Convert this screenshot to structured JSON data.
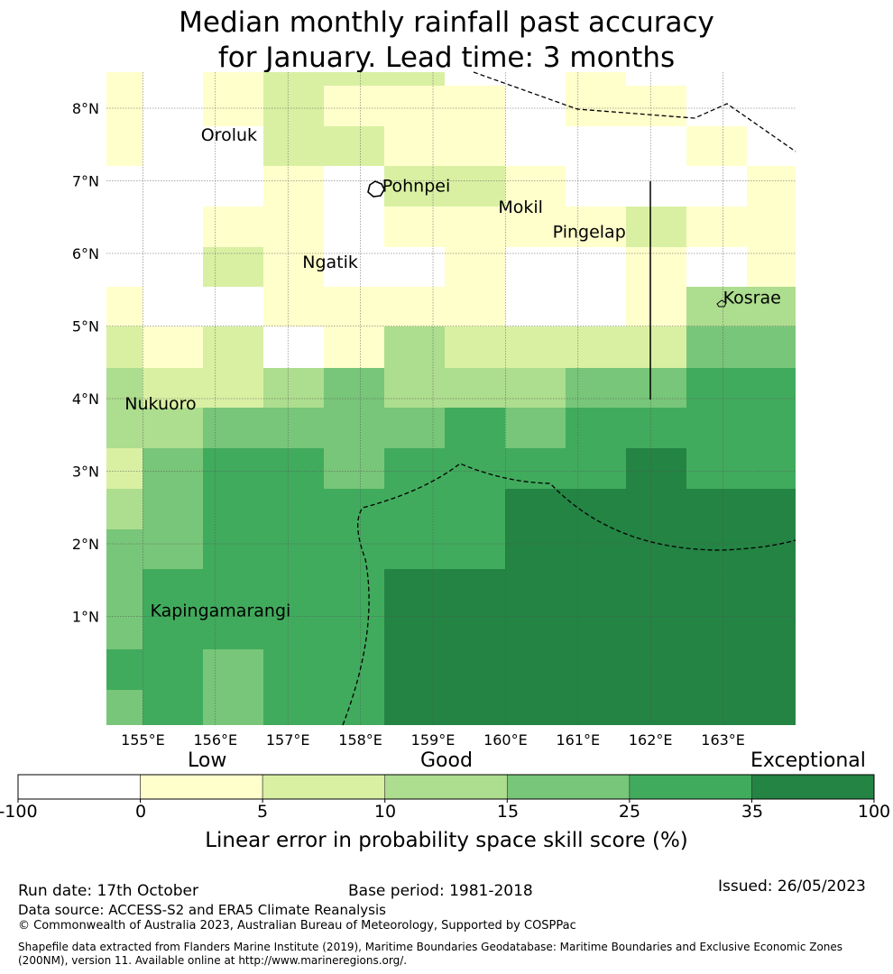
{
  "title": {
    "line1": "Median monthly rainfall past accuracy",
    "line2": "for January. Lead time: 3 months"
  },
  "map": {
    "lon_range": [
      154.5,
      164.0
    ],
    "lat_range": [
      -0.5,
      8.5
    ],
    "lon_ticks": [
      "155°E",
      "156°E",
      "157°E",
      "158°E",
      "159°E",
      "160°E",
      "161°E",
      "162°E",
      "163°E"
    ],
    "lat_ticks": [
      "1°N",
      "2°N",
      "3°N",
      "4°N",
      "5°N",
      "6°N",
      "7°N",
      "8°N"
    ],
    "place_labels": [
      {
        "name": "Oroluk",
        "lon": 155.8,
        "lat": 7.55
      },
      {
        "name": "Pohnpei",
        "lon": 158.3,
        "lat": 6.85
      },
      {
        "name": "Mokil",
        "lon": 159.9,
        "lat": 6.56
      },
      {
        "name": "Pingelap",
        "lon": 160.65,
        "lat": 6.22
      },
      {
        "name": "Ngatik",
        "lon": 157.2,
        "lat": 5.8
      },
      {
        "name": "Kosrae",
        "lon": 163.0,
        "lat": 5.31
      },
      {
        "name": "Nukuoro",
        "lon": 154.75,
        "lat": 3.85
      },
      {
        "name": "Kapingamarangi",
        "lon": 155.1,
        "lat": 1.0
      }
    ],
    "skill_bins": [
      {
        "range": "-100 to 0",
        "color": "#ffffff"
      },
      {
        "range": "0 to 5",
        "color": "#ffffcc"
      },
      {
        "range": "5 to 10",
        "color": "#d9f0a3"
      },
      {
        "range": "10 to 15",
        "color": "#addd8e"
      },
      {
        "range": "15 to 25",
        "color": "#78c679"
      },
      {
        "range": "25 to 35",
        "color": "#41ab5d"
      },
      {
        "range": "35 to 100",
        "color": "#238443"
      }
    ]
  },
  "colorbar": {
    "category_labels": [
      "Low",
      "Good",
      "Exceptional"
    ],
    "ticks": [
      "-100",
      "0",
      "5",
      "10",
      "15",
      "25",
      "35",
      "100"
    ],
    "label": "Linear error in probability space skill score (%)"
  },
  "footer": {
    "run_date": "Run date: 17th October",
    "base_period": "Base period: 1981-2018",
    "issued": "Issued: 26/05/2023",
    "data_source": "Data source: ACCESS-S2 and ERA5 Climate Reanalysis",
    "copyright": "© Commonwealth of Australia 2023, Australian Bureau of Meteorology, Supported by COSPPac",
    "shapefile_line1": "Shapefile data extracted from Flanders Marine Institute (2019), Maritime Boundaries Geodatabase: Maritime Boundaries and Exclusive Economic Zones",
    "shapefile_line2": "(200NM), version 11. Available online at http://www.marineregions.org/."
  }
}
